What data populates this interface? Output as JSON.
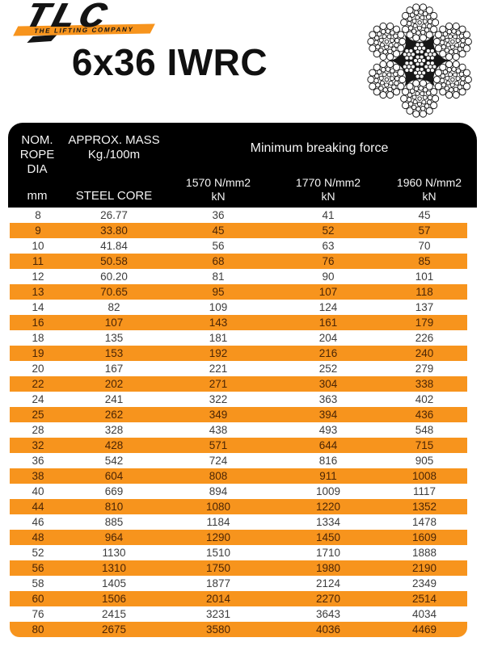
{
  "brand": {
    "logo_text": "TLC",
    "tagline": "THE LIFTING COMPANY"
  },
  "title": "6x36 IWRC",
  "icons": {
    "rope_icon": "rope-cross-section"
  },
  "colors": {
    "accent_orange": "#F7941D",
    "header_bg": "#000000",
    "body_text": "#3C3C3C",
    "orange_row_text": "#4B2505"
  },
  "table": {
    "header": {
      "dia_line1": "NOM.",
      "dia_line2": "ROPE",
      "dia_line3": "DIA",
      "dia_unit": "mm",
      "mass_line1": "APPROX. MASS",
      "mass_line2": "Kg./100m",
      "mass_unit": "STEEL CORE",
      "breaking_force_label": "Minimum breaking force",
      "grades": [
        {
          "label": "1570 N/mm2",
          "unit": "kN"
        },
        {
          "label": "1770 N/mm2",
          "unit": "kN"
        },
        {
          "label": "1960 N/mm2",
          "unit": "kN"
        }
      ]
    },
    "rows": [
      [
        "8",
        "26.77",
        "36",
        "41",
        "45"
      ],
      [
        "9",
        "33.80",
        "45",
        "52",
        "57"
      ],
      [
        "10",
        "41.84",
        "56",
        "63",
        "70"
      ],
      [
        "11",
        "50.58",
        "68",
        "76",
        "85"
      ],
      [
        "12",
        "60.20",
        "81",
        "90",
        "101"
      ],
      [
        "13",
        "70.65",
        "95",
        "107",
        "118"
      ],
      [
        "14",
        "82",
        "109",
        "124",
        "137"
      ],
      [
        "16",
        "107",
        "143",
        "161",
        "179"
      ],
      [
        "18",
        "135",
        "181",
        "204",
        "226"
      ],
      [
        "19",
        "153",
        "192",
        "216",
        "240"
      ],
      [
        "20",
        "167",
        "221",
        "252",
        "279"
      ],
      [
        "22",
        "202",
        "271",
        "304",
        "338"
      ],
      [
        "24",
        "241",
        "322",
        "363",
        "402"
      ],
      [
        "25",
        "262",
        "349",
        "394",
        "436"
      ],
      [
        "28",
        "328",
        "438",
        "493",
        "548"
      ],
      [
        "32",
        "428",
        "571",
        "644",
        "715"
      ],
      [
        "36",
        "542",
        "724",
        "816",
        "905"
      ],
      [
        "38",
        "604",
        "808",
        "911",
        "1008"
      ],
      [
        "40",
        "669",
        "894",
        "1009",
        "1117"
      ],
      [
        "44",
        "810",
        "1080",
        "1220",
        "1352"
      ],
      [
        "46",
        "885",
        "1184",
        "1334",
        "1478"
      ],
      [
        "48",
        "964",
        "1290",
        "1450",
        "1609"
      ],
      [
        "52",
        "1130",
        "1510",
        "1710",
        "1888"
      ],
      [
        "56",
        "1310",
        "1750",
        "1980",
        "2190"
      ],
      [
        "58",
        "1405",
        "1877",
        "2124",
        "2349"
      ],
      [
        "60",
        "1506",
        "2014",
        "2270",
        "2514"
      ],
      [
        "76",
        "2415",
        "3231",
        "3643",
        "4034"
      ],
      [
        "80",
        "2675",
        "3580",
        "4036",
        "4469"
      ]
    ]
  }
}
